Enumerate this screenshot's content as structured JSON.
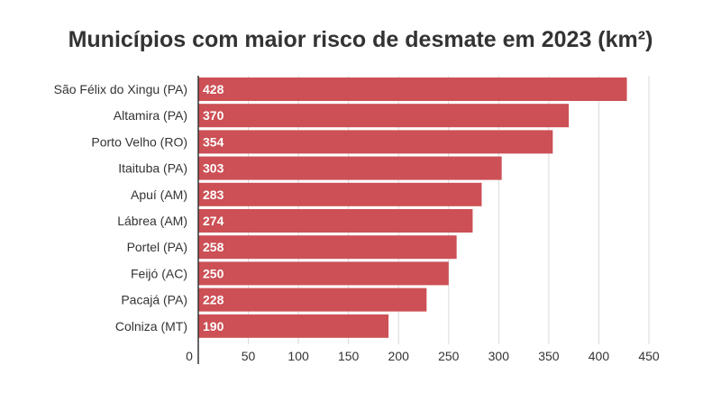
{
  "chart_data": {
    "type": "bar",
    "orientation": "horizontal",
    "title": "Municípios com maior risco de desmate em 2023 (km²)",
    "categories": [
      "São Félix do Xingu (PA)",
      "Altamira (PA)",
      "Porto Velho (RO)",
      "Itaituba (PA)",
      "Apuí (AM)",
      "Lábrea (AM)",
      "Portel (PA)",
      "Feijó (AC)",
      "Pacajá (PA)",
      "Colniza (MT)"
    ],
    "values": [
      428,
      370,
      354,
      303,
      283,
      274,
      258,
      250,
      228,
      190
    ],
    "xlim": [
      0,
      450
    ],
    "xticks": [
      0,
      50,
      100,
      150,
      200,
      250,
      300,
      350,
      400,
      450
    ],
    "grid": "vertical",
    "bar_color": "#cc5055"
  }
}
